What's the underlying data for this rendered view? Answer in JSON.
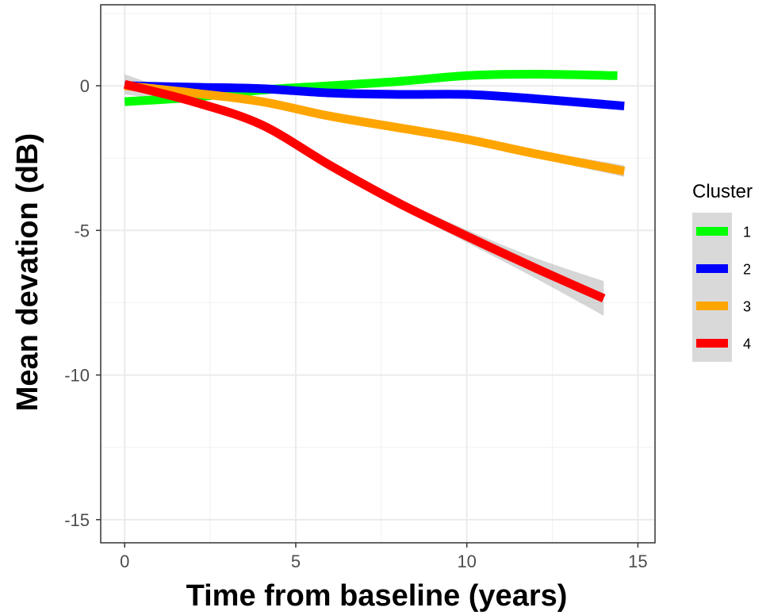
{
  "chart_data": {
    "type": "line",
    "title": "",
    "xlabel": "Time from baseline (years)",
    "ylabel": "Mean devation (dB)",
    "xlim": [
      -0.7,
      15.5
    ],
    "ylim": [
      -15.8,
      2.8
    ],
    "x_ticks": [
      0,
      5,
      10,
      15
    ],
    "x_tick_labels": [
      "0",
      "5",
      "10",
      "15"
    ],
    "y_ticks": [
      0,
      -5,
      -10,
      -15
    ],
    "y_tick_labels": [
      "0",
      "-5",
      "-10",
      "-15"
    ],
    "grid": true,
    "legend": {
      "title": "Cluster",
      "position": "right"
    },
    "series": [
      {
        "name": "1",
        "color": "#00ff00",
        "x": [
          0,
          2,
          4,
          6,
          8,
          10,
          12,
          14.4
        ],
        "y": [
          -0.55,
          -0.4,
          -0.15,
          0.0,
          0.15,
          0.35,
          0.4,
          0.35
        ],
        "ci": [
          0.08,
          0.05,
          0.04,
          0.04,
          0.05,
          0.06,
          0.07,
          0.1
        ]
      },
      {
        "name": "2",
        "color": "#0000ff",
        "x": [
          0,
          2,
          4,
          6,
          8,
          10,
          12,
          14.6
        ],
        "y": [
          0.0,
          -0.05,
          -0.1,
          -0.25,
          -0.3,
          -0.3,
          -0.45,
          -0.7
        ],
        "ci": [
          0.08,
          0.05,
          0.05,
          0.05,
          0.06,
          0.07,
          0.09,
          0.13
        ]
      },
      {
        "name": "3",
        "color": "#ffa500",
        "x": [
          0,
          2,
          4,
          6,
          8,
          10,
          12,
          14.6
        ],
        "y": [
          0.0,
          -0.25,
          -0.55,
          -1.05,
          -1.45,
          -1.85,
          -2.35,
          -2.95
        ],
        "ci": [
          0.1,
          0.07,
          0.07,
          0.07,
          0.08,
          0.1,
          0.13,
          0.2
        ]
      },
      {
        "name": "4",
        "color": "#ff0000",
        "x": [
          0,
          2,
          4,
          6,
          8,
          10,
          12,
          14
        ],
        "y": [
          0.05,
          -0.55,
          -1.35,
          -2.75,
          -4.05,
          -5.2,
          -6.3,
          -7.35
        ],
        "ci": [
          0.35,
          0.12,
          0.12,
          0.12,
          0.15,
          0.22,
          0.35,
          0.6
        ]
      }
    ]
  }
}
